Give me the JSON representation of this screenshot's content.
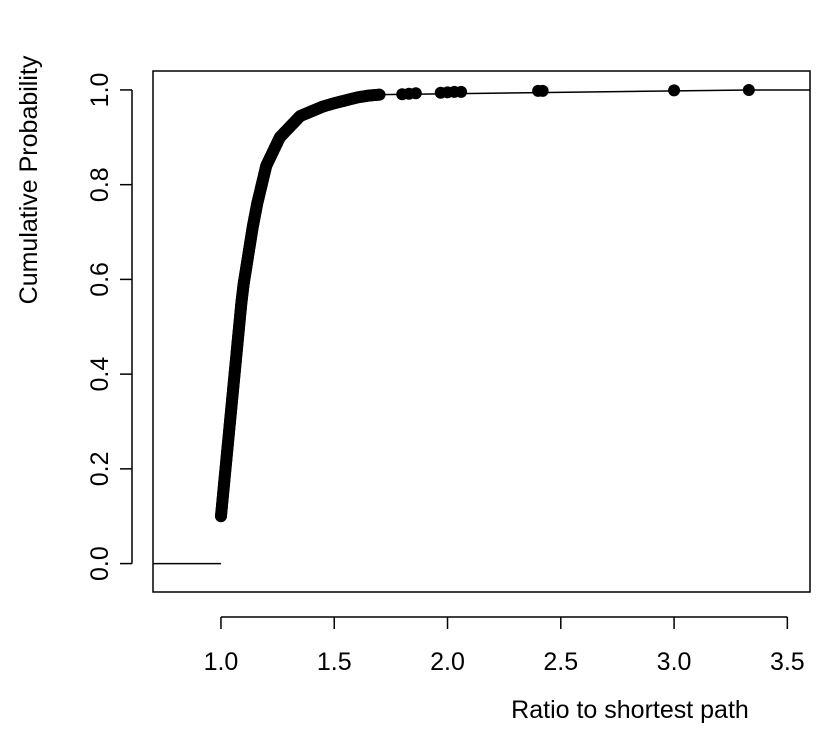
{
  "chart_data": {
    "type": "scatter",
    "title": "",
    "xlabel": "Ratio to shortest path",
    "ylabel": "Cumulative Probability",
    "xlim": [
      0.7,
      3.6
    ],
    "ylim": [
      -0.06,
      1.04
    ],
    "xticks": [
      "1.0",
      "1.5",
      "2.0",
      "2.5",
      "3.0",
      "3.5"
    ],
    "yticks": [
      "0.0",
      "0.2",
      "0.4",
      "0.6",
      "0.8",
      "1.0"
    ],
    "grid": false,
    "legend": "none",
    "color": "#000000",
    "curve": [
      [
        1.0,
        0.1
      ],
      [
        1.01,
        0.15
      ],
      [
        1.02,
        0.2
      ],
      [
        1.03,
        0.25
      ],
      [
        1.04,
        0.3
      ],
      [
        1.05,
        0.35
      ],
      [
        1.06,
        0.4
      ],
      [
        1.07,
        0.45
      ],
      [
        1.08,
        0.5
      ],
      [
        1.09,
        0.55
      ],
      [
        1.1,
        0.59
      ],
      [
        1.12,
        0.65
      ],
      [
        1.14,
        0.71
      ],
      [
        1.16,
        0.76
      ],
      [
        1.18,
        0.8
      ],
      [
        1.2,
        0.84
      ],
      [
        1.23,
        0.87
      ],
      [
        1.26,
        0.9
      ],
      [
        1.3,
        0.92
      ],
      [
        1.35,
        0.945
      ],
      [
        1.4,
        0.955
      ],
      [
        1.45,
        0.965
      ],
      [
        1.5,
        0.972
      ],
      [
        1.55,
        0.978
      ],
      [
        1.6,
        0.984
      ],
      [
        1.65,
        0.988
      ],
      [
        1.7,
        0.99
      ]
    ],
    "outliers": [
      [
        1.8,
        0.991
      ],
      [
        1.83,
        0.992
      ],
      [
        1.86,
        0.993
      ],
      [
        1.97,
        0.994
      ],
      [
        2.0,
        0.995
      ],
      [
        2.03,
        0.996
      ],
      [
        2.06,
        0.996
      ],
      [
        2.4,
        0.998
      ],
      [
        2.42,
        0.998
      ],
      [
        3.0,
        0.999
      ],
      [
        3.33,
        1.0
      ]
    ],
    "left_step": {
      "x": [
        0.7,
        1.0
      ],
      "y": 0.0
    },
    "right_step": {
      "x": [
        3.33,
        3.6
      ],
      "y": 1.0
    }
  }
}
